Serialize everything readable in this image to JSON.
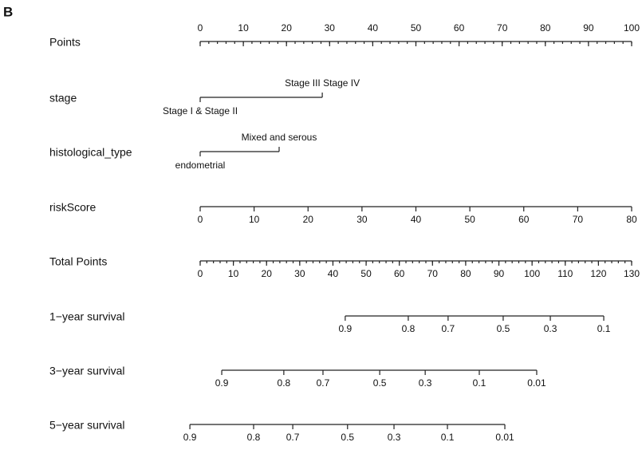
{
  "panel_label": "B",
  "chart_data": {
    "type": "nomogram",
    "points_lim": [
      0,
      100
    ],
    "total_lim": [
      0,
      130
    ],
    "rows": [
      {
        "name": "Points",
        "scale": "points",
        "style": "axis-top",
        "ticks": [
          0,
          10,
          20,
          30,
          40,
          50,
          60,
          70,
          80,
          90,
          100
        ],
        "minor_step": 2
      },
      {
        "name": "stage",
        "scale": "points",
        "style": "categorical",
        "ticks": [
          "Stage I & Stage II",
          "Stage III Stage IV"
        ],
        "positions": [
          0,
          28.3
        ]
      },
      {
        "name": "histological_type",
        "scale": "points",
        "style": "categorical",
        "ticks": [
          "endometrial",
          "Mixed and serous"
        ],
        "positions": [
          0,
          18.3
        ]
      },
      {
        "name": "riskScore",
        "scale": "points",
        "style": "axis-bottom",
        "ticks": [
          0,
          10,
          20,
          30,
          40,
          50,
          60,
          70,
          80
        ],
        "positions": [
          0,
          12.5,
          25,
          37.5,
          50,
          62.5,
          75,
          87.5,
          100
        ]
      },
      {
        "name": "Total Points",
        "scale": "total",
        "style": "axis-bottom",
        "ticks": [
          0,
          10,
          20,
          30,
          40,
          50,
          60,
          70,
          80,
          90,
          100,
          110,
          120,
          130
        ],
        "minor_step": 2
      },
      {
        "name": "1−year survival",
        "scale": "total",
        "style": "axis-bottom",
        "ticks": [
          0.9,
          0.8,
          0.7,
          0.5,
          0.3,
          0.1
        ],
        "positions": [
          43.7,
          62.7,
          74.7,
          91.3,
          105.5,
          121.6
        ]
      },
      {
        "name": "3−year survival",
        "scale": "total",
        "style": "axis-bottom",
        "ticks": [
          0.9,
          0.8,
          0.7,
          0.5,
          0.3,
          0.1,
          0.01
        ],
        "positions": [
          6.5,
          25.2,
          37.0,
          54.1,
          67.8,
          84.1,
          101.4
        ]
      },
      {
        "name": "5−year survival",
        "scale": "total",
        "style": "axis-bottom",
        "ticks": [
          0.9,
          0.8,
          0.7,
          0.5,
          0.3,
          0.1,
          0.01
        ],
        "positions": [
          -3.1,
          16.1,
          27.9,
          44.4,
          58.4,
          74.5,
          91.8
        ]
      }
    ]
  }
}
